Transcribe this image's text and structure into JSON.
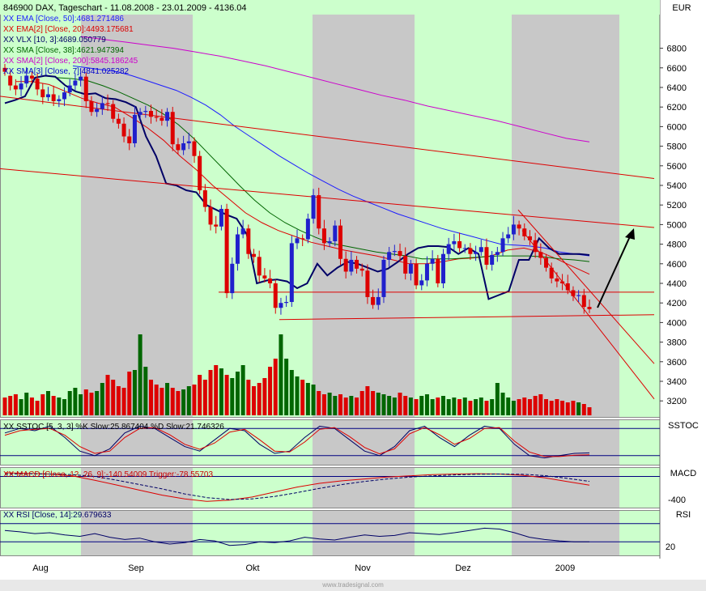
{
  "header": {
    "main_title": "846900  DAX, Tageschart - 11.08.2008 - 23.01.2009 - 4136.04",
    "currency": "EUR",
    "legend": [
      {
        "text": "XX EMA [Close, 50]:4681.271486",
        "color": "#1c1cff"
      },
      {
        "text": "XX EMA[2] [Close, 20]:4493.175681",
        "color": "#dd0000"
      },
      {
        "text": "XX VLX [10, 3]:4689.050779",
        "color": "#000066"
      },
      {
        "text": "XX SMA [Close, 38]:4621.947394",
        "color": "#006600"
      },
      {
        "text": "XX SMA[2] [Close, 200]:5845.186245",
        "color": "#cc00cc"
      },
      {
        "text": "XX SMA[3] [Close, 7]:4841.025282",
        "color": "#0000cc"
      }
    ]
  },
  "panels": {
    "sstoc": {
      "label": "SSTOC",
      "legend": "XX SSTOC [5, 3, 3] %K Slow:25.867404 %D Slow:21.746326"
    },
    "macd": {
      "label": "MACD",
      "legend": "XX MACD [Close, 12, 26, 9]:-140.54009 Trigger:-78.55703",
      "tick": "-400"
    },
    "rsi": {
      "label": "RSI",
      "legend": "XX RSI [Close, 14]:29.679633",
      "tick": "20"
    }
  },
  "months": [
    "Aug",
    "Sep",
    "Okt",
    "Nov",
    "Dez",
    "2009"
  ],
  "watermark": "www.tradesignal.com",
  "colors": {
    "green_band": "#ccffcc",
    "grey_band": "#c8c8c8",
    "up_candle": "#2020cc",
    "down_candle": "#dd0000",
    "vol_up": "#006600",
    "vol_down": "#dd0000"
  },
  "chart_data": {
    "type": "candlestick",
    "title": "846900  DAX, Tageschart - 11.08.2008 - 23.01.2009 - 4136.04",
    "ylabel": "EUR",
    "ylim": [
      3050,
      7100
    ],
    "yticks": [
      3200,
      3400,
      3600,
      3800,
      4000,
      4200,
      4400,
      4600,
      4800,
      5000,
      5200,
      5400,
      5600,
      5800,
      6000,
      6200,
      6400,
      6600,
      6800
    ],
    "x_range": [
      "2008-08-11",
      "2009-01-23"
    ],
    "x_ticks": [
      "Aug",
      "Sep",
      "Okt",
      "Nov",
      "Dez",
      "2009"
    ],
    "candles_close": [
      6560,
      6420,
      6380,
      6440,
      6520,
      6490,
      6380,
      6300,
      6330,
      6260,
      6280,
      6350,
      6420,
      6470,
      6510,
      6260,
      6150,
      6180,
      6240,
      6230,
      6080,
      6030,
      5900,
      5830,
      6120,
      6150,
      6160,
      6100,
      6090,
      6060,
      6150,
      5820,
      5760,
      5830,
      5850,
      5700,
      5350,
      5180,
      5000,
      4980,
      5160,
      4300,
      4600,
      4900,
      4960,
      4700,
      4670,
      4480,
      4450,
      4400,
      4150,
      4200,
      4210,
      4810,
      4860,
      4850,
      5060,
      5300,
      4960,
      4810,
      4830,
      4990,
      4650,
      4520,
      4640,
      4550,
      4530,
      4260,
      4180,
      4260,
      4640,
      4720,
      4730,
      4680,
      4500,
      4600,
      4380,
      4430,
      4600,
      4650,
      4400,
      4700,
      4800,
      4830,
      4760,
      4760,
      4700,
      4720,
      4770,
      4590,
      4690,
      4720,
      4860,
      4900,
      5000,
      4960,
      4880,
      4840,
      4720,
      4660,
      4560,
      4450,
      4420,
      4400,
      4330,
      4270,
      4280,
      4160,
      4136
    ],
    "candles_open": [
      6600,
      6520,
      6420,
      6380,
      6440,
      6520,
      6490,
      6380,
      6300,
      6330,
      6260,
      6280,
      6350,
      6420,
      6470,
      6510,
      6260,
      6150,
      6180,
      6240,
      6230,
      6080,
      6030,
      5900,
      5830,
      6120,
      6150,
      6160,
      6100,
      6090,
      6060,
      6150,
      5820,
      5760,
      5830,
      5850,
      5700,
      5350,
      5180,
      5000,
      4980,
      5160,
      4300,
      4600,
      4900,
      4960,
      4700,
      4670,
      4480,
      4450,
      4400,
      4150,
      4200,
      4210,
      4810,
      4860,
      4850,
      5060,
      5300,
      4960,
      4810,
      4830,
      4990,
      4650,
      4520,
      4640,
      4550,
      4530,
      4260,
      4180,
      4260,
      4640,
      4720,
      4730,
      4680,
      4500,
      4600,
      4380,
      4430,
      4600,
      4650,
      4400,
      4700,
      4800,
      4830,
      4760,
      4760,
      4700,
      4720,
      4770,
      4590,
      4690,
      4720,
      4860,
      4900,
      5000,
      4960,
      4880,
      4840,
      4720,
      4660,
      4560,
      4450,
      4420,
      4400,
      4330,
      4270,
      4280,
      4160
    ],
    "volume_heights": [
      22,
      24,
      26,
      20,
      28,
      22,
      18,
      26,
      30,
      24,
      22,
      20,
      30,
      34,
      26,
      32,
      28,
      30,
      40,
      50,
      44,
      36,
      34,
      54,
      56,
      100,
      60,
      44,
      38,
      34,
      40,
      34,
      30,
      32,
      36,
      38,
      50,
      44,
      56,
      62,
      58,
      50,
      46,
      54,
      62,
      44,
      36,
      40,
      46,
      60,
      70,
      100,
      70,
      56,
      48,
      44,
      40,
      38,
      30,
      26,
      28,
      24,
      26,
      22,
      24,
      22,
      30,
      36,
      30,
      28,
      26,
      24,
      22,
      28,
      24,
      22,
      20,
      24,
      26,
      20,
      22,
      24,
      20,
      22,
      20,
      22,
      18,
      20,
      22,
      18,
      20,
      40,
      28,
      22,
      18,
      20,
      22,
      20,
      24,
      26,
      20,
      18,
      20,
      18,
      16,
      18,
      16,
      14,
      10
    ],
    "series": [
      {
        "name": "EMA [Close, 50]",
        "values": [
          6620,
          6600,
          6580,
          6560,
          6520,
          6470,
          6420,
          6370,
          6300,
          6220,
          6120,
          6000,
          5900,
          5800,
          5700,
          5610,
          5520,
          5440,
          5360,
          5290,
          5230,
          5170,
          5110,
          5060,
          5010,
          4960,
          4920,
          4880,
          4840,
          4800,
          4790,
          4780,
          4760,
          4720,
          4700,
          4681
        ]
      },
      {
        "name": "EMA[2] [Close, 20]",
        "values": [
          6460,
          6460,
          6430,
          6360,
          6290,
          6240,
          6200,
          6100,
          5990,
          5860,
          5700,
          5560,
          5400,
          5260,
          5120,
          5020,
          4940,
          4880,
          4820,
          4780,
          4740,
          4710,
          4680,
          4640,
          4600,
          4600,
          4620,
          4650,
          4660,
          4680,
          4740,
          4760,
          4720,
          4650,
          4570,
          4493
        ]
      },
      {
        "name": "SMA [Close, 38]",
        "values": [
          6500,
          6490,
          6470,
          6420,
          6360,
          6290,
          6220,
          6130,
          6020,
          5880,
          5720,
          5560,
          5400,
          5250,
          5120,
          5020,
          4940,
          4870,
          4810,
          4780,
          4750,
          4720,
          4700,
          4680,
          4650,
          4650,
          4650,
          4660,
          4670,
          4680,
          4680,
          4680,
          4670,
          4650,
          4640,
          4622
        ]
      },
      {
        "name": "SMA[2] [Close, 200]",
        "values": [
          6920,
          6890,
          6860,
          6830,
          6800,
          6760,
          6720,
          6670,
          6620,
          6560,
          6500,
          6440,
          6380,
          6320,
          6270,
          6210,
          6160,
          6110,
          6060,
          6000,
          5940,
          5880,
          5845
        ]
      },
      {
        "name": "VLX [10, 3]",
        "values": [
          6240,
          6270,
          6310,
          6500,
          6520,
          6510,
          6420,
          6360,
          6330,
          6340,
          6290,
          6280,
          6250,
          6200,
          5900,
          5700,
          5420,
          5400,
          5350,
          5330,
          5200,
          5150,
          5100,
          5060,
          4900,
          4400,
          4430,
          4440,
          4420,
          4350,
          4400,
          4600,
          4480,
          4560,
          4620,
          4600,
          4560,
          4520,
          4550,
          4620,
          4700,
          4760,
          4780,
          4780,
          4770,
          4700,
          4760,
          4700,
          4240,
          4280,
          4320,
          4640,
          4640,
          4860,
          4760,
          4700,
          4700,
          4700,
          4689
        ]
      }
    ],
    "trendlines": [
      {
        "from": [
          "2008-08-11",
          6310
        ],
        "to": [
          "2009-01-23",
          5470
        ]
      },
      {
        "from": [
          "2008-08-11",
          5570
        ],
        "to": [
          "2009-01-23",
          4970
        ]
      },
      {
        "from": [
          "Okt",
          4310
        ],
        "to": [
          "2009-01-23",
          4310
        ]
      },
      {
        "from": [
          "Okt",
          4030
        ],
        "to": [
          "2009-01-23",
          4080
        ]
      },
      {
        "from": [
          "2009-01-05",
          5150
        ],
        "to": [
          "2009-01-23",
          3580
        ]
      },
      {
        "from": [
          "2009-01-05",
          4940
        ],
        "to": [
          "2009-01-23",
          3220
        ]
      }
    ],
    "sstoc": {
      "k_slow": 25.867404,
      "d_slow": 21.746326,
      "k": [
        70,
        80,
        75,
        85,
        60,
        30,
        20,
        35,
        70,
        85,
        80,
        60,
        40,
        30,
        55,
        80,
        75,
        45,
        25,
        30,
        60,
        85,
        80,
        55,
        30,
        20,
        40,
        75,
        85,
        60,
        40,
        65,
        85,
        80,
        45,
        20,
        15,
        20,
        25,
        26
      ],
      "d": [
        65,
        75,
        78,
        80,
        65,
        40,
        25,
        30,
        60,
        80,
        82,
        66,
        45,
        34,
        48,
        72,
        78,
        55,
        30,
        28,
        50,
        78,
        82,
        62,
        38,
        24,
        35,
        68,
        82,
        66,
        45,
        58,
        80,
        82,
        52,
        28,
        18,
        18,
        21,
        22
      ]
    },
    "macd": {
      "macd": -140.54009,
      "trigger": -78.55703,
      "ylim": [
        -500,
        150
      ],
      "macd_line": [
        60,
        50,
        40,
        10,
        -60,
        -140,
        -220,
        -300,
        -360,
        -400,
        -380,
        -330,
        -250,
        -170,
        -110,
        -70,
        -40,
        -10,
        10,
        30,
        40,
        45,
        40,
        20,
        -20,
        -80,
        -140
      ],
      "trigger_line": [
        40,
        45,
        40,
        30,
        0,
        -60,
        -130,
        -200,
        -280,
        -340,
        -370,
        -360,
        -320,
        -260,
        -190,
        -130,
        -80,
        -40,
        -10,
        10,
        25,
        35,
        40,
        35,
        15,
        -30,
        -79
      ]
    },
    "rsi": {
      "value": 29.679633,
      "ylim": [
        0,
        100
      ],
      "values": [
        55,
        52,
        48,
        50,
        45,
        42,
        48,
        40,
        35,
        38,
        30,
        25,
        28,
        35,
        32,
        22,
        24,
        30,
        28,
        32,
        40,
        36,
        34,
        40,
        45,
        42,
        44,
        50,
        48,
        46,
        50,
        55,
        60,
        58,
        50,
        40,
        35,
        32,
        30,
        30
      ]
    }
  }
}
